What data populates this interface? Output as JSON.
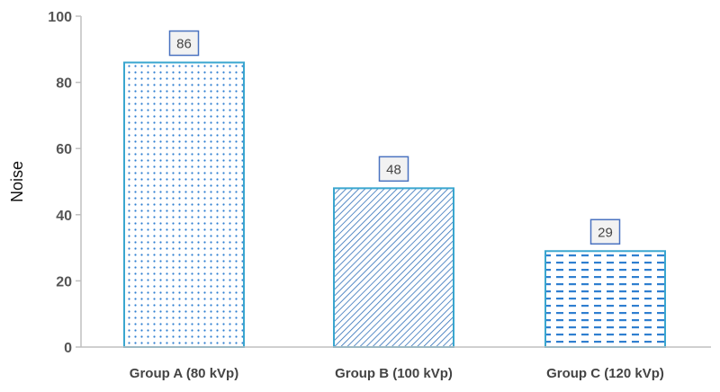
{
  "chart_data": {
    "type": "bar",
    "title": "",
    "xlabel": "",
    "ylabel": "Noise",
    "ylim": [
      0,
      100
    ],
    "yticks": [
      0,
      20,
      40,
      60,
      80,
      100
    ],
    "grid": false,
    "categories": [
      "Group A (80 kVp)",
      "Group B (100 kVp)",
      "Group C (120 kVp)"
    ],
    "values": [
      86,
      48,
      29
    ],
    "data_labels": [
      "86",
      "48",
      "29"
    ],
    "patterns": [
      "dots",
      "diagonal-hatch",
      "dashes"
    ],
    "colors": {
      "bar_border": "#3aa6cf",
      "pattern": "#2f7fd0",
      "label_border": "#4a72c0",
      "label_fill": "#f2f2f2",
      "axis": "#bfbfbf"
    }
  }
}
